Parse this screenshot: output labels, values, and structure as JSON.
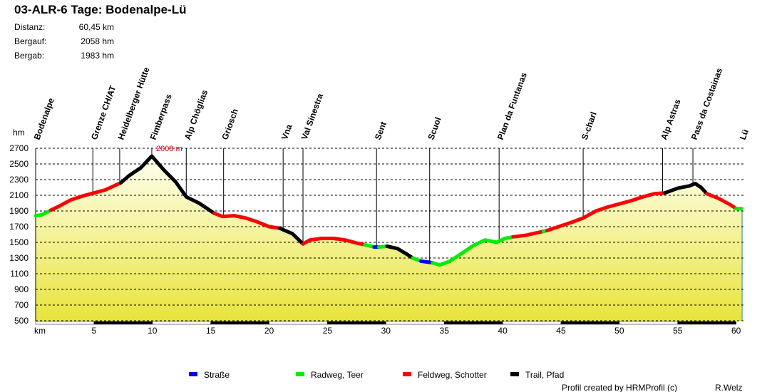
{
  "header": {
    "title": "03-ALR-6 Tage: Bodenalpe-Lü",
    "stats": [
      {
        "label": "Distanz:",
        "value": "60,45 km"
      },
      {
        "label": "Bergauf:",
        "value": "2058 hm"
      },
      {
        "label": "Bergab:",
        "value": "1983 hm"
      }
    ]
  },
  "footer": {
    "credit": "Profil created by HRMProfil (c)",
    "author": "R.Welz"
  },
  "colors": {
    "Straße": "#0000ff",
    "Radweg, Teer": "#00ee00",
    "Feldweg, Schotter": "#ff0000",
    "Trail, Pfad": "#000000",
    "fill_top": "#fffff0",
    "fill_bottom": "#e8e43a"
  },
  "chart_data": {
    "type": "area",
    "ylabel": "hm",
    "xlabel": "km",
    "ylim": [
      500,
      2700
    ],
    "xlim": [
      0,
      60.45
    ],
    "yticks": [
      2700,
      2500,
      2300,
      2100,
      1900,
      1700,
      1500,
      1300,
      1100,
      900,
      700,
      500
    ],
    "xticks": [
      5,
      10,
      15,
      20,
      25,
      30,
      35,
      40,
      45,
      50,
      55,
      60
    ],
    "grid": true,
    "legend_position": "bottom",
    "max_label": "2608 m",
    "max_km": 9.95,
    "max_elev": 2608,
    "legend": [
      "Straße",
      "Radweg, Teer",
      "Feldweg, Schotter",
      "Trail, Pfad"
    ],
    "waypoints": [
      {
        "name": "Bodenalpe",
        "km": 0
      },
      {
        "name": "Grenze CH/AT",
        "km": 4.9
      },
      {
        "name": "Heidelberger Hütte",
        "km": 7.2
      },
      {
        "name": "Fimberpass",
        "km": 9.95
      },
      {
        "name": "Alp Chöglias",
        "km": 12.9
      },
      {
        "name": "Griosch",
        "km": 16.1
      },
      {
        "name": "Vna",
        "km": 21.2
      },
      {
        "name": "Val Sinestra",
        "km": 22.9
      },
      {
        "name": "Sent",
        "km": 29.2
      },
      {
        "name": "Scuol",
        "km": 33.75
      },
      {
        "name": "Plan da Funtanas",
        "km": 39.7
      },
      {
        "name": "S-charl",
        "km": 46.9
      },
      {
        "name": "Alp Astras",
        "km": 53.7
      },
      {
        "name": "Pass da Costainas",
        "km": 56.3
      },
      {
        "name": "Lü",
        "km": 60.45
      }
    ],
    "segments": [
      {
        "surface": "Radweg, Teer",
        "points": [
          [
            0,
            1840
          ],
          [
            0.5,
            1850
          ],
          [
            1,
            1885
          ],
          [
            1.3,
            1910
          ]
        ]
      },
      {
        "surface": "Feldweg, Schotter",
        "points": [
          [
            1.3,
            1910
          ],
          [
            2,
            1960
          ],
          [
            3,
            2040
          ],
          [
            4,
            2090
          ],
          [
            5,
            2130
          ],
          [
            6,
            2170
          ],
          [
            7,
            2240
          ],
          [
            7.3,
            2260
          ]
        ]
      },
      {
        "surface": "Trail, Pfad",
        "points": [
          [
            7.3,
            2260
          ],
          [
            8,
            2350
          ],
          [
            9,
            2450
          ],
          [
            9.95,
            2600
          ],
          [
            11,
            2420
          ],
          [
            12,
            2270
          ],
          [
            12.9,
            2080
          ],
          [
            14,
            2000
          ],
          [
            15,
            1900
          ],
          [
            15.3,
            1870
          ]
        ]
      },
      {
        "surface": "Feldweg, Schotter",
        "points": [
          [
            15.3,
            1870
          ],
          [
            16,
            1830
          ],
          [
            17,
            1840
          ],
          [
            18,
            1810
          ],
          [
            19,
            1760
          ],
          [
            20,
            1700
          ],
          [
            20.9,
            1680
          ]
        ]
      },
      {
        "surface": "Trail, Pfad",
        "points": [
          [
            20.9,
            1680
          ],
          [
            22,
            1610
          ],
          [
            22.9,
            1480
          ]
        ]
      },
      {
        "surface": "Feldweg, Schotter",
        "points": [
          [
            22.9,
            1480
          ],
          [
            23.5,
            1530
          ],
          [
            24.5,
            1550
          ],
          [
            25.5,
            1550
          ],
          [
            26.5,
            1530
          ],
          [
            27.5,
            1490
          ],
          [
            28.2,
            1470
          ]
        ]
      },
      {
        "surface": "Radweg, Teer",
        "points": [
          [
            28.2,
            1470
          ],
          [
            29,
            1440
          ]
        ]
      },
      {
        "surface": "Straße",
        "points": [
          [
            29,
            1440
          ],
          [
            29.4,
            1440
          ]
        ]
      },
      {
        "surface": "Radweg, Teer",
        "points": [
          [
            29.4,
            1440
          ],
          [
            30.1,
            1450
          ]
        ]
      },
      {
        "surface": "Trail, Pfad",
        "points": [
          [
            30.1,
            1450
          ],
          [
            31,
            1420
          ],
          [
            32,
            1330
          ],
          [
            32.3,
            1300
          ]
        ]
      },
      {
        "surface": "Radweg, Teer",
        "points": [
          [
            32.3,
            1300
          ],
          [
            33,
            1260
          ]
        ]
      },
      {
        "surface": "Straße",
        "points": [
          [
            33,
            1260
          ],
          [
            34,
            1240
          ]
        ]
      },
      {
        "surface": "Radweg, Teer",
        "points": [
          [
            34,
            1240
          ],
          [
            34.6,
            1210
          ],
          [
            35.5,
            1260
          ],
          [
            36.5,
            1360
          ],
          [
            37.5,
            1460
          ],
          [
            38.5,
            1530
          ],
          [
            39.5,
            1500
          ],
          [
            40.2,
            1550
          ],
          [
            40.9,
            1570
          ]
        ]
      },
      {
        "surface": "Feldweg, Schotter",
        "points": [
          [
            40.9,
            1570
          ],
          [
            42,
            1590
          ],
          [
            43.5,
            1640
          ]
        ]
      },
      {
        "surface": "Radweg, Teer",
        "points": [
          [
            43.5,
            1640
          ],
          [
            43.8,
            1650
          ]
        ]
      },
      {
        "surface": "Feldweg, Schotter",
        "points": [
          [
            43.8,
            1650
          ],
          [
            45,
            1710
          ],
          [
            46,
            1760
          ],
          [
            46.9,
            1810
          ],
          [
            48,
            1900
          ],
          [
            49,
            1950
          ],
          [
            50,
            1990
          ],
          [
            51,
            2030
          ],
          [
            52,
            2080
          ],
          [
            53,
            2120
          ],
          [
            53.9,
            2130
          ]
        ]
      },
      {
        "surface": "Trail, Pfad",
        "points": [
          [
            53.9,
            2130
          ],
          [
            55,
            2190
          ],
          [
            56,
            2220
          ],
          [
            56.5,
            2250
          ],
          [
            57,
            2200
          ],
          [
            57.5,
            2120
          ]
        ]
      },
      {
        "surface": "Feldweg, Schotter",
        "points": [
          [
            57.5,
            2120
          ],
          [
            58.5,
            2060
          ],
          [
            59.5,
            1980
          ],
          [
            60,
            1930
          ]
        ]
      },
      {
        "surface": "Radweg, Teer",
        "points": [
          [
            60,
            1930
          ],
          [
            60.45,
            1930
          ]
        ]
      }
    ]
  }
}
